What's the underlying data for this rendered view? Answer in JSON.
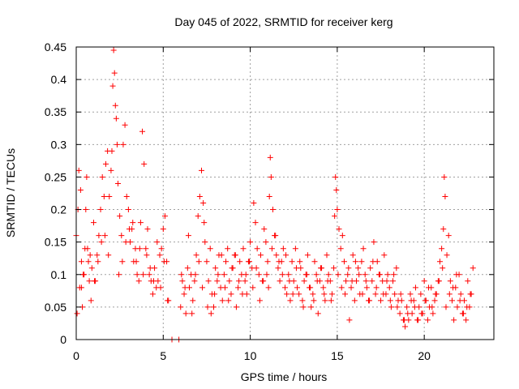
{
  "chart_data": {
    "type": "scatter",
    "title": "Day 045 of 2022, SRMTID for receiver kerg",
    "xlabel": "GPS time / hours",
    "ylabel": "SRMTID / TECUs",
    "xlim": [
      0,
      24
    ],
    "ylim": [
      0,
      0.45
    ],
    "xticks": [
      0,
      5,
      10,
      15,
      20
    ],
    "xtick_labels": [
      "0",
      "5",
      "10",
      "15",
      "20"
    ],
    "yticks": [
      0,
      0.05,
      0.1,
      0.15,
      0.2,
      0.25,
      0.3,
      0.35,
      0.4,
      0.45
    ],
    "ytick_labels": [
      "0",
      "0.05",
      "0.1",
      "0.15",
      "0.2",
      "0.25",
      "0.3",
      "0.35",
      "0.4",
      "0.45"
    ],
    "grid": true,
    "marker": "plus",
    "series_color": "#ff0000",
    "series": [
      {
        "name": "SRMTID",
        "x": [
          0.0,
          0.1,
          0.15,
          0.2,
          0.25,
          0.3,
          0.35,
          0.4,
          0.5,
          0.55,
          0.6,
          0.7,
          0.75,
          0.8,
          0.9,
          1.0,
          1.1,
          1.2,
          1.3,
          1.4,
          1.5,
          1.6,
          1.7,
          1.8,
          1.9,
          2.0,
          2.05,
          2.1,
          2.15,
          2.2,
          2.25,
          2.3,
          2.35,
          2.4,
          2.5,
          2.6,
          2.7,
          2.8,
          2.9,
          3.0,
          3.1,
          3.2,
          3.3,
          3.4,
          3.5,
          3.6,
          3.7,
          3.8,
          3.9,
          4.0,
          4.1,
          4.2,
          4.3,
          4.4,
          4.5,
          4.6,
          4.7,
          4.8,
          4.9,
          5.0,
          5.1,
          5.2,
          5.3,
          5.5,
          5.9,
          6.0,
          6.1,
          6.2,
          6.3,
          6.4,
          6.5,
          6.6,
          6.7,
          6.8,
          6.9,
          7.0,
          7.1,
          7.2,
          7.3,
          7.35,
          7.4,
          7.5,
          7.6,
          7.7,
          7.8,
          7.9,
          8.0,
          8.1,
          8.2,
          8.3,
          8.4,
          8.5,
          8.6,
          8.7,
          8.8,
          8.9,
          9.0,
          9.1,
          9.2,
          9.3,
          9.4,
          9.5,
          9.6,
          9.7,
          9.8,
          9.9,
          10.0,
          10.1,
          10.2,
          10.3,
          10.4,
          10.5,
          10.6,
          10.7,
          10.8,
          10.9,
          11.0,
          11.05,
          11.1,
          11.15,
          11.2,
          11.3,
          11.4,
          11.5,
          11.6,
          11.7,
          11.8,
          11.9,
          12.0,
          12.1,
          12.2,
          12.3,
          12.4,
          12.5,
          12.6,
          12.7,
          12.8,
          12.9,
          13.0,
          13.1,
          13.2,
          13.3,
          13.4,
          13.5,
          13.6,
          13.7,
          13.8,
          13.9,
          14.0,
          14.1,
          14.2,
          14.3,
          14.4,
          14.5,
          14.6,
          14.7,
          14.8,
          14.85,
          14.9,
          14.95,
          15.0,
          15.1,
          15.2,
          15.3,
          15.4,
          15.5,
          15.6,
          15.7,
          15.8,
          15.9,
          16.0,
          16.1,
          16.2,
          16.3,
          16.4,
          16.5,
          16.6,
          16.7,
          16.8,
          16.9,
          17.0,
          17.1,
          17.2,
          17.3,
          17.4,
          17.5,
          17.6,
          17.7,
          17.8,
          17.9,
          18.0,
          18.1,
          18.2,
          18.3,
          18.4,
          18.5,
          18.6,
          18.7,
          18.8,
          18.9,
          19.0,
          19.1,
          19.2,
          19.3,
          19.4,
          19.5,
          19.6,
          19.7,
          19.8,
          19.9,
          20.0,
          20.1,
          20.2,
          20.3,
          20.4,
          20.5,
          20.6,
          20.7,
          20.8,
          20.9,
          21.0,
          21.1,
          21.15,
          21.2,
          21.3,
          21.4,
          21.5,
          21.6,
          21.7,
          21.8,
          21.9,
          22.0,
          22.1,
          22.2,
          22.3,
          22.4,
          22.5,
          22.6,
          22.7,
          22.8,
          0.05,
          0.3,
          0.45,
          0.65,
          0.85,
          1.05,
          1.25,
          1.45,
          1.65,
          1.85,
          2.45,
          2.65,
          2.85,
          3.05,
          3.25,
          3.45,
          3.65,
          3.85,
          4.05,
          4.25,
          4.45,
          4.65,
          4.85,
          5.05,
          5.25,
          6.05,
          6.25,
          6.45,
          6.65,
          6.85,
          7.05,
          7.25,
          7.55,
          7.75,
          7.95,
          8.15,
          8.35,
          8.55,
          8.75,
          8.95,
          9.15,
          9.35,
          9.55,
          9.75,
          9.95,
          10.15,
          10.35,
          10.55,
          10.75,
          10.95,
          11.25,
          11.45,
          11.65,
          11.85,
          12.05,
          12.25,
          12.45,
          12.65,
          12.85,
          13.05,
          13.25,
          13.45,
          13.65,
          13.85,
          14.05,
          14.25,
          14.45,
          14.65,
          15.05,
          15.25,
          15.45,
          15.65,
          15.85,
          16.05,
          16.25,
          16.45,
          16.65,
          16.85,
          17.05,
          17.25,
          17.45,
          17.65,
          17.85,
          18.05,
          18.25,
          18.45,
          18.65,
          18.85,
          19.05,
          19.25,
          19.45,
          19.65,
          19.85,
          20.05,
          20.25,
          20.45,
          20.65,
          20.85,
          21.05,
          21.25,
          21.45,
          21.65,
          21.85,
          22.05,
          22.25,
          22.45,
          22.65
        ],
        "y": [
          0.16,
          0.2,
          0.26,
          0.08,
          0.23,
          0.12,
          0.05,
          0.1,
          0.14,
          0.2,
          0.25,
          0.12,
          0.09,
          0.13,
          0.11,
          0.18,
          0.09,
          0.13,
          0.16,
          0.2,
          0.25,
          0.22,
          0.27,
          0.29,
          0.22,
          0.26,
          0.29,
          0.39,
          0.445,
          0.41,
          0.36,
          0.34,
          0.3,
          0.24,
          0.19,
          0.16,
          0.3,
          0.33,
          0.22,
          0.2,
          0.15,
          0.17,
          0.12,
          0.14,
          0.1,
          0.09,
          0.18,
          0.32,
          0.27,
          0.14,
          0.17,
          0.1,
          0.09,
          0.07,
          0.11,
          0.08,
          0.09,
          0.13,
          0.14,
          0.17,
          0.19,
          0.12,
          0.06,
          0.0,
          0.0,
          0.05,
          0.09,
          0.07,
          0.04,
          0.11,
          0.08,
          0.1,
          0.06,
          0.09,
          0.13,
          0.19,
          0.22,
          0.26,
          0.21,
          0.18,
          0.15,
          0.12,
          0.09,
          0.14,
          0.07,
          0.05,
          0.11,
          0.09,
          0.13,
          0.08,
          0.06,
          0.1,
          0.12,
          0.14,
          0.09,
          0.07,
          0.11,
          0.13,
          0.05,
          0.08,
          0.12,
          0.1,
          0.14,
          0.09,
          0.07,
          0.12,
          0.15,
          0.11,
          0.21,
          0.18,
          0.14,
          0.1,
          0.13,
          0.09,
          0.17,
          0.15,
          0.12,
          0.08,
          0.22,
          0.28,
          0.25,
          0.2,
          0.16,
          0.13,
          0.11,
          0.09,
          0.12,
          0.14,
          0.08,
          0.07,
          0.1,
          0.06,
          0.12,
          0.09,
          0.14,
          0.08,
          0.07,
          0.11,
          0.06,
          0.09,
          0.1,
          0.13,
          0.08,
          0.05,
          0.07,
          0.12,
          0.1,
          0.04,
          0.09,
          0.11,
          0.08,
          0.06,
          0.13,
          0.1,
          0.09,
          0.07,
          0.11,
          0.19,
          0.25,
          0.23,
          0.2,
          0.17,
          0.14,
          0.16,
          0.12,
          0.09,
          0.1,
          0.03,
          0.08,
          0.13,
          0.06,
          0.09,
          0.11,
          0.07,
          0.12,
          0.14,
          0.1,
          0.08,
          0.06,
          0.11,
          0.09,
          0.15,
          0.07,
          0.12,
          0.1,
          0.06,
          0.09,
          0.13,
          0.07,
          0.1,
          0.08,
          0.05,
          0.09,
          0.07,
          0.11,
          0.06,
          0.04,
          0.06,
          0.03,
          0.02,
          0.05,
          0.03,
          0.07,
          0.04,
          0.06,
          0.08,
          0.03,
          0.05,
          0.07,
          0.04,
          0.09,
          0.06,
          0.03,
          0.05,
          0.08,
          0.04,
          0.06,
          0.07,
          0.09,
          0.12,
          0.14,
          0.17,
          0.25,
          0.22,
          0.13,
          0.16,
          0.09,
          0.06,
          0.03,
          0.08,
          0.05,
          0.1,
          0.07,
          0.04,
          0.06,
          0.03,
          0.09,
          0.05,
          0.07,
          0.11,
          0.04,
          0.08,
          0.1,
          0.14,
          0.06,
          0.09,
          0.12,
          0.15,
          0.16,
          0.13,
          0.1,
          0.12,
          0.15,
          0.17,
          0.18,
          0.12,
          0.14,
          0.1,
          0.13,
          0.11,
          0.09,
          0.15,
          0.08,
          0.12,
          0.06,
          0.1,
          0.08,
          0.16,
          0.04,
          0.1,
          0.12,
          0.08,
          0.05,
          0.04,
          0.07,
          0.1,
          0.13,
          0.08,
          0.06,
          0.11,
          0.13,
          0.09,
          0.07,
          0.1,
          0.12,
          0.08,
          0.11,
          0.06,
          0.09,
          0.1,
          0.14,
          0.16,
          0.12,
          0.1,
          0.13,
          0.09,
          0.07,
          0.11,
          0.12,
          0.05,
          0.1,
          0.08,
          0.06,
          0.09,
          0.11,
          0.07,
          0.09,
          0.06,
          0.1,
          0.08,
          0.07,
          0.11,
          0.09,
          0.12,
          0.1,
          0.07,
          0.09,
          0.06,
          0.12,
          0.08,
          0.1,
          0.07,
          0.09,
          0.06,
          0.1,
          0.05,
          0.07,
          0.03,
          0.04,
          0.06,
          0.05,
          0.03,
          0.04,
          0.06,
          0.08,
          0.05,
          0.07,
          0.09,
          0.11,
          0.05,
          0.07,
          0.08,
          0.1,
          0.06,
          0.04,
          0.05,
          0.07
        ]
      }
    ]
  }
}
